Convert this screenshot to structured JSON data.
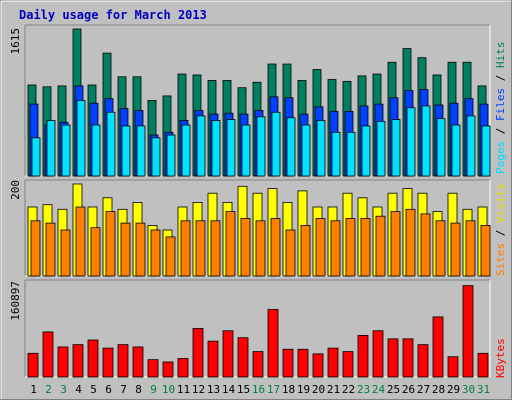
{
  "title": "Daily usage for March 2013",
  "colors": {
    "background": "#c0c0c0",
    "title": "#0000c0",
    "hits": "#008060",
    "files": "#0040ff",
    "pages": "#00e0ff",
    "visits": "#ffff00",
    "sites": "#ff8000",
    "kbytes": "#ff0000",
    "weekend_label": "#008040",
    "weekday_label": "#000000"
  },
  "chart_data": [
    {
      "type": "bar",
      "title": "Daily usage for March 2013",
      "panel": "hits-files-pages",
      "y_max_label": "1615",
      "ylim": [
        0,
        1615
      ],
      "legend": [
        "Pages",
        "Files",
        "Hits"
      ],
      "legend_placement": "right",
      "categories": [
        "1",
        "2",
        "3",
        "4",
        "5",
        "6",
        "7",
        "8",
        "9",
        "10",
        "11",
        "12",
        "13",
        "14",
        "15",
        "16",
        "17",
        "18",
        "19",
        "20",
        "21",
        "22",
        "23",
        "24",
        "25",
        "26",
        "27",
        "28",
        "29",
        "30",
        "31"
      ],
      "weekend_days": [
        "2",
        "3",
        "9",
        "10",
        "16",
        "17",
        "23",
        "24",
        "30",
        "31"
      ],
      "series": [
        {
          "name": "Hits",
          "values": [
            1000,
            980,
            990,
            1615,
            1000,
            1350,
            1090,
            1090,
            830,
            880,
            1120,
            1110,
            1050,
            1050,
            970,
            1030,
            1230,
            1230,
            1050,
            1170,
            1060,
            1040,
            1100,
            1120,
            1250,
            1400,
            1300,
            1110,
            1250,
            1250,
            990
          ]
        },
        {
          "name": "Files",
          "values": [
            790,
            560,
            590,
            990,
            800,
            850,
            740,
            720,
            450,
            480,
            610,
            720,
            680,
            690,
            680,
            720,
            870,
            860,
            680,
            760,
            710,
            710,
            770,
            790,
            860,
            940,
            950,
            780,
            800,
            850,
            790
          ]
        },
        {
          "name": "Pages",
          "values": [
            420,
            610,
            560,
            830,
            560,
            700,
            550,
            550,
            420,
            450,
            560,
            660,
            610,
            620,
            560,
            650,
            700,
            640,
            560,
            610,
            480,
            480,
            550,
            600,
            620,
            750,
            770,
            630,
            560,
            660,
            550
          ]
        }
      ]
    },
    {
      "type": "bar",
      "panel": "visits-sites",
      "y_max_label": "200",
      "ylim": [
        0,
        200
      ],
      "legend": [
        "Sites",
        "Visits"
      ],
      "legend_placement": "right",
      "categories": [
        "1",
        "2",
        "3",
        "4",
        "5",
        "6",
        "7",
        "8",
        "9",
        "10",
        "11",
        "12",
        "13",
        "14",
        "15",
        "16",
        "17",
        "18",
        "19",
        "20",
        "21",
        "22",
        "23",
        "24",
        "25",
        "26",
        "27",
        "28",
        "29",
        "30",
        "31"
      ],
      "series": [
        {
          "name": "Visits",
          "values": [
            150,
            155,
            145,
            200,
            150,
            170,
            145,
            160,
            110,
            100,
            150,
            160,
            180,
            160,
            195,
            180,
            190,
            160,
            185,
            150,
            150,
            180,
            170,
            150,
            180,
            190,
            180,
            140,
            180,
            145,
            150
          ]
        },
        {
          "name": "Sites",
          "values": [
            120,
            115,
            100,
            150,
            105,
            140,
            115,
            115,
            100,
            85,
            120,
            120,
            120,
            140,
            125,
            120,
            125,
            100,
            110,
            125,
            120,
            125,
            125,
            130,
            140,
            145,
            135,
            120,
            115,
            120,
            110
          ]
        }
      ]
    },
    {
      "type": "bar",
      "panel": "kbytes",
      "y_max_label": "160897",
      "ylim": [
        0,
        160897
      ],
      "legend": [
        "KBytes"
      ],
      "legend_placement": "right",
      "categories": [
        "1",
        "2",
        "3",
        "4",
        "5",
        "6",
        "7",
        "8",
        "9",
        "10",
        "11",
        "12",
        "13",
        "14",
        "15",
        "16",
        "17",
        "18",
        "19",
        "20",
        "21",
        "22",
        "23",
        "24",
        "25",
        "26",
        "27",
        "28",
        "29",
        "30",
        "31"
      ],
      "series": [
        {
          "name": "KBytes",
          "values": [
            41000,
            78000,
            52000,
            56000,
            64000,
            50000,
            56000,
            52000,
            30000,
            26000,
            32000,
            84000,
            62000,
            80000,
            68000,
            44000,
            117000,
            48000,
            48000,
            40000,
            50000,
            44000,
            72000,
            80000,
            66000,
            66000,
            56000,
            104000,
            35000,
            158000,
            41000
          ]
        }
      ]
    }
  ]
}
